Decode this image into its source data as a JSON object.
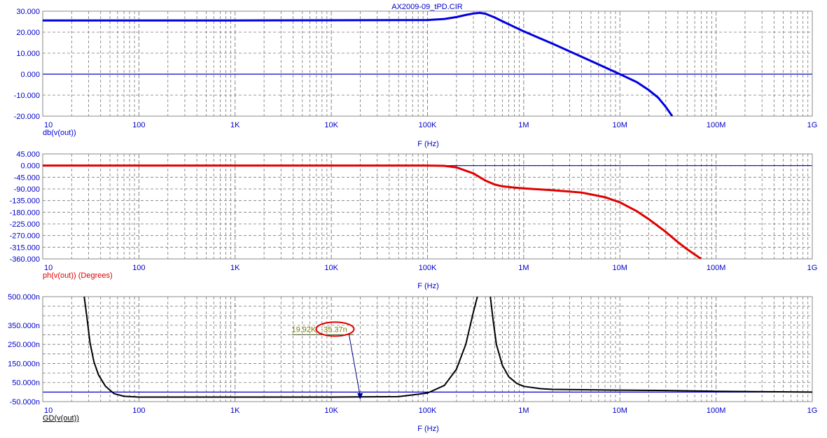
{
  "window_title": "AX2009-09_tPD.CIR",
  "colors": {
    "grid": "#777777",
    "frame": "#888888",
    "zero_line": "#0000c8",
    "tick_text": "#0000c8",
    "db_trace": "#0000e0",
    "phase_trace": "#e00000",
    "gd_trace": "#000000",
    "cursor_text": "#808000",
    "cursor_arrow": "#000080",
    "highlight_ellipse": "#e00000"
  },
  "chart_data": [
    {
      "type": "line",
      "name": "magnitude",
      "title": "AX2009-09_tPD.CIR",
      "xlabel": "F (Hz)",
      "ylabel": "db(v(out))",
      "xscale": "log",
      "xlim": [
        10,
        1000000000
      ],
      "xticks": [
        10,
        100,
        1000,
        10000,
        100000,
        1000000,
        10000000,
        100000000,
        1000000000
      ],
      "xtick_labels": [
        "10",
        "100",
        "1K",
        "10K",
        "100K",
        "1M",
        "10M",
        "100M",
        "1G"
      ],
      "ylim": [
        -20,
        30
      ],
      "yticks": [
        30,
        20,
        10,
        0,
        -10,
        -20
      ],
      "ytick_labels": [
        "30.000",
        "20.000",
        "10.000",
        "0.000",
        "-10.000",
        "-20.000"
      ],
      "grid": true,
      "series": [
        {
          "x": [
            10,
            1000,
            100000,
            150000,
            200000,
            250000,
            300000,
            350000,
            400000,
            500000,
            600000,
            1000000,
            2000000,
            5000000,
            10000000,
            15000000,
            20000000,
            25000000,
            30000000,
            35000000
          ],
          "y": [
            25.6,
            25.6,
            25.8,
            26.3,
            27.2,
            28.2,
            28.9,
            29.2,
            28.8,
            27.0,
            25.2,
            20.4,
            14.5,
            6.3,
            0.0,
            -3.8,
            -7.6,
            -11.2,
            -15.6,
            -20.0
          ]
        }
      ]
    },
    {
      "type": "line",
      "name": "phase",
      "xlabel": "F (Hz)",
      "ylabel": "ph(v(out)) (Degrees)",
      "xscale": "log",
      "xlim": [
        10,
        1000000000
      ],
      "xticks": [
        10,
        100,
        1000,
        10000,
        100000,
        1000000,
        10000000,
        100000000,
        1000000000
      ],
      "xtick_labels": [
        "10",
        "100",
        "1K",
        "10K",
        "100K",
        "1M",
        "10M",
        "100M",
        "1G"
      ],
      "ylim": [
        -360,
        45
      ],
      "yticks": [
        45,
        0,
        -45,
        -90,
        -135,
        -180,
        -225,
        -270,
        -315,
        -360
      ],
      "ytick_labels": [
        "45.000",
        "0.000",
        "-45.000",
        "-90.000",
        "-135.000",
        "-180.000",
        "-225.000",
        "-270.000",
        "-315.000",
        "-360.000"
      ],
      "grid": true,
      "series": [
        {
          "x": [
            10,
            100000,
            150000,
            200000,
            300000,
            400000,
            500000,
            600000,
            800000,
            1000000,
            2000000,
            4000000,
            7000000,
            10000000,
            15000000,
            20000000,
            30000000,
            40000000,
            50000000,
            60000000,
            70000000
          ],
          "y": [
            0,
            0,
            -1,
            -7,
            -30,
            -58,
            -73,
            -80,
            -85,
            -88,
            -95,
            -104,
            -122,
            -142,
            -176,
            -207,
            -256,
            -295,
            -323,
            -343,
            -360
          ]
        }
      ]
    },
    {
      "type": "line",
      "name": "group-delay",
      "xlabel": "F (Hz)",
      "ylabel": "GD(v(out))",
      "xscale": "log",
      "xlim": [
        10,
        1000000000
      ],
      "xticks": [
        10,
        100,
        1000,
        10000,
        100000,
        1000000,
        10000000,
        100000000,
        1000000000
      ],
      "xtick_labels": [
        "10",
        "100",
        "1K",
        "10K",
        "100K",
        "1M",
        "10M",
        "100M",
        "1G"
      ],
      "ylim": [
        -50,
        500
      ],
      "ytick_labels": [
        "500.000n",
        "350.000n",
        "250.000n",
        "150.000n",
        "50.000n",
        "-50.000n"
      ],
      "ytick_positions": [
        500,
        350,
        250,
        150,
        50,
        -50
      ],
      "grid": true,
      "series": [
        {
          "x": [
            27,
            29,
            31,
            34,
            38,
            45,
            55,
            70,
            100,
            1000,
            10000,
            50000,
            100000,
            150000,
            200000,
            250000,
            300000,
            330000
          ],
          "y": [
            500,
            380,
            260,
            160,
            90,
            30,
            -8,
            -22,
            -26,
            -26,
            -26,
            -24,
            -5,
            35,
            120,
            250,
            420,
            500
          ]
        },
        {
          "x": [
            450000,
            480000,
            520000,
            600000,
            700000,
            850000,
            1000000,
            1500000,
            2000000,
            5000000,
            10000000,
            30000000,
            100000000,
            1000000000
          ],
          "y": [
            500,
            380,
            250,
            140,
            80,
            45,
            30,
            18,
            14,
            12,
            10,
            8,
            4,
            0
          ]
        }
      ],
      "cursor": {
        "label_x": "19.92K",
        "label_y": "-35.37n",
        "point": [
          19920,
          -35.37
        ],
        "label_at": [
          4000,
          330
        ]
      }
    }
  ]
}
